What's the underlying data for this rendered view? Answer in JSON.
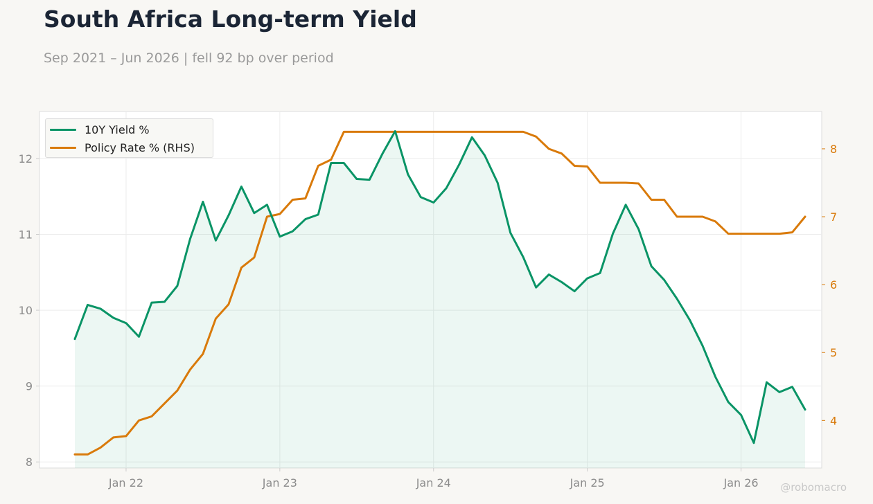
{
  "title": "South Africa Long-term Yield",
  "subtitle": "Sep 2021 – Jun 2026 | fell 92 bp over period",
  "watermark": "@robomacro",
  "colors": {
    "yield": "#0a9466",
    "policy": "#d97a0a",
    "right_axis": "#d97a0a",
    "fill": "#0a9466"
  },
  "chart_data": {
    "type": "line",
    "x": [
      "2021-09",
      "2021-10",
      "2021-11",
      "2021-12",
      "2022-01",
      "2022-02",
      "2022-03",
      "2022-04",
      "2022-05",
      "2022-06",
      "2022-07",
      "2022-08",
      "2022-09",
      "2022-10",
      "2022-11",
      "2022-12",
      "2023-01",
      "2023-02",
      "2023-03",
      "2023-04",
      "2023-05",
      "2023-06",
      "2023-07",
      "2023-08",
      "2023-09",
      "2023-10",
      "2023-11",
      "2023-12",
      "2024-01",
      "2024-02",
      "2024-03",
      "2024-04",
      "2024-05",
      "2024-06",
      "2024-07",
      "2024-08",
      "2024-09",
      "2024-10",
      "2024-11",
      "2024-12",
      "2025-01",
      "2025-02",
      "2025-03",
      "2025-04",
      "2025-05",
      "2025-06",
      "2025-07",
      "2025-08",
      "2025-09",
      "2025-10",
      "2025-11",
      "2025-12",
      "2026-01",
      "2026-02",
      "2026-03",
      "2026-04",
      "2026-05",
      "2026-06"
    ],
    "series": [
      {
        "name": "10Y Yield %",
        "axis": "left",
        "values": [
          9.62,
          10.07,
          10.02,
          9.9,
          9.83,
          9.65,
          10.1,
          10.11,
          10.32,
          10.94,
          11.43,
          10.92,
          11.25,
          11.63,
          11.28,
          11.39,
          10.97,
          11.04,
          11.2,
          11.26,
          11.94,
          11.94,
          11.73,
          11.72,
          12.06,
          12.36,
          11.79,
          11.49,
          11.42,
          11.61,
          11.92,
          12.28,
          12.04,
          11.68,
          11.02,
          10.7,
          10.3,
          10.47,
          10.37,
          10.25,
          10.42,
          10.49,
          11.01,
          11.39,
          11.07,
          10.58,
          10.4,
          10.15,
          9.87,
          9.53,
          9.12,
          8.79,
          8.62,
          8.25,
          9.05,
          8.92,
          8.99,
          8.69
        ]
      },
      {
        "name": "Policy Rate % (RHS)",
        "axis": "right",
        "values": [
          3.5,
          3.5,
          3.6,
          3.75,
          3.77,
          4.0,
          4.06,
          4.25,
          4.44,
          4.75,
          4.98,
          5.5,
          5.71,
          6.25,
          6.4,
          7.0,
          7.04,
          7.25,
          7.27,
          7.75,
          7.84,
          8.25,
          8.25,
          8.25,
          8.25,
          8.25,
          8.25,
          8.25,
          8.25,
          8.25,
          8.25,
          8.25,
          8.25,
          8.25,
          8.25,
          8.25,
          8.18,
          8.0,
          7.93,
          7.75,
          7.74,
          7.5,
          7.5,
          7.5,
          7.49,
          7.25,
          7.25,
          7.0,
          7.0,
          7.0,
          6.93,
          6.75,
          6.75,
          6.75,
          6.75,
          6.75,
          6.77,
          7.0
        ]
      }
    ],
    "xticks": [
      {
        "label": "Jan 22",
        "x": "2022-01"
      },
      {
        "label": "Jan 23",
        "x": "2023-01"
      },
      {
        "label": "Jan 24",
        "x": "2024-01"
      },
      {
        "label": "Jan 25",
        "x": "2025-01"
      },
      {
        "label": "Jan 26",
        "x": "2026-01"
      }
    ],
    "yticks_left": [
      8,
      9,
      10,
      11,
      12
    ],
    "yticks_right": [
      4,
      5,
      6,
      7,
      8
    ],
    "ylim_left": [
      7.92,
      12.62
    ],
    "ylim_right": [
      3.3,
      8.55
    ],
    "grid": true,
    "legend_position": "top-left",
    "left_series_fill": true
  }
}
